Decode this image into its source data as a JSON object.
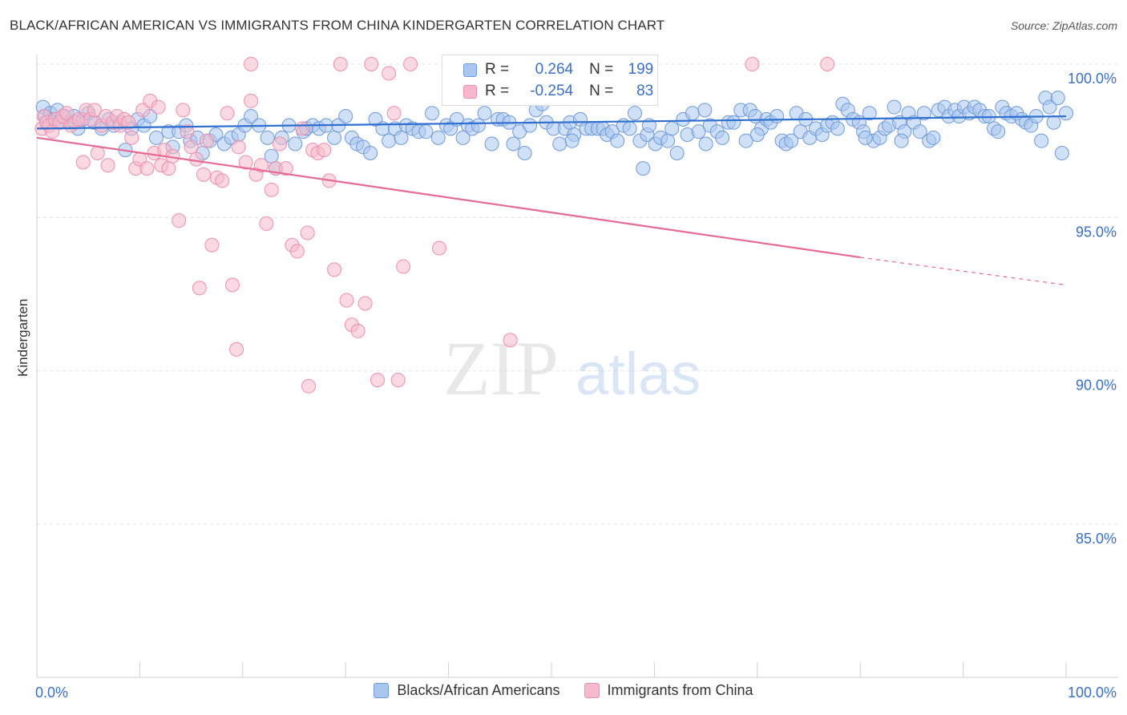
{
  "header": {
    "title": "BLACK/AFRICAN AMERICAN VS IMMIGRANTS FROM CHINA KINDERGARTEN CORRELATION CHART",
    "source": "Source: ZipAtlas.com"
  },
  "legend": {
    "r_label": "R =",
    "n_label": "N =",
    "rows": [
      {
        "r": "0.264",
        "n": "199"
      },
      {
        "r": "-0.254",
        "n": "83"
      }
    ]
  },
  "bottom_legend": {
    "series1": "Blacks/African Americans",
    "series2": "Immigrants from China"
  },
  "watermark": {
    "zip": "ZIP",
    "atlas": "atlas"
  },
  "colors": {
    "blue_fill": "#a9c6ef",
    "blue_stroke": "#6f9ad8",
    "blue_line": "#2f6fd0",
    "pink_fill": "#f6b9cb",
    "pink_stroke": "#ec8fae",
    "pink_line": "#e56a96",
    "tick_label": "#3a6fc4"
  },
  "chart_data": {
    "type": "scatter",
    "title": "BLACK/AFRICAN AMERICAN VS IMMIGRANTS FROM CHINA KINDERGARTEN CORRELATION CHART",
    "xlabel": "",
    "ylabel": "Kindergarten",
    "xlim": [
      0,
      100
    ],
    "ylim": [
      80,
      100.8
    ],
    "x_tick_labels": [
      "0.0%",
      "100.0%"
    ],
    "y_ticks": [
      100,
      95,
      90,
      85
    ],
    "y_tick_labels": [
      "100.0%",
      "95.0%",
      "90.0%",
      "85.0%"
    ],
    "grid": "horizontal dashed",
    "legend_position": "top-center",
    "series": [
      {
        "name": "Blacks/African Americans",
        "r": 0.264,
        "n": 199,
        "trend": {
          "x": [
            0,
            100
          ],
          "y": [
            97.9,
            98.3
          ]
        },
        "points": [
          [
            0.6,
            98.6
          ],
          [
            0.8,
            98.3
          ],
          [
            1.0,
            98.1
          ],
          [
            1.3,
            98.4
          ],
          [
            1.6,
            98.2
          ],
          [
            2.0,
            98.5
          ],
          [
            2.3,
            98.1
          ],
          [
            2.7,
            98.3
          ],
          [
            3.1,
            98.1
          ],
          [
            3.6,
            98.3
          ],
          [
            4.0,
            97.9
          ],
          [
            4.5,
            98.2
          ],
          [
            5.0,
            98.4
          ],
          [
            5.6,
            98.1
          ],
          [
            6.3,
            97.9
          ],
          [
            7.0,
            98.2
          ],
          [
            7.5,
            98.0
          ],
          [
            8.1,
            98.1
          ],
          [
            8.6,
            97.2
          ],
          [
            9.2,
            97.9
          ],
          [
            9.8,
            98.2
          ],
          [
            10.4,
            98.0
          ],
          [
            11.0,
            98.3
          ],
          [
            11.6,
            97.6
          ],
          [
            12.8,
            97.8
          ],
          [
            13.2,
            97.3
          ],
          [
            13.8,
            97.8
          ],
          [
            14.5,
            98.0
          ],
          [
            14.9,
            97.5
          ],
          [
            15.6,
            97.6
          ],
          [
            16.1,
            97.1
          ],
          [
            16.8,
            97.5
          ],
          [
            17.4,
            97.7
          ],
          [
            18.2,
            97.4
          ],
          [
            18.9,
            97.6
          ],
          [
            19.6,
            97.7
          ],
          [
            20.2,
            98.0
          ],
          [
            20.8,
            98.3
          ],
          [
            21.6,
            98.0
          ],
          [
            22.4,
            97.6
          ],
          [
            22.8,
            97.0
          ],
          [
            23.2,
            96.6
          ],
          [
            23.8,
            97.6
          ],
          [
            24.5,
            98.0
          ],
          [
            25.1,
            97.4
          ],
          [
            25.9,
            97.8
          ],
          [
            26.2,
            97.9
          ],
          [
            26.8,
            98.0
          ],
          [
            27.4,
            97.9
          ],
          [
            28.1,
            98.0
          ],
          [
            28.9,
            97.6
          ],
          [
            29.3,
            98.0
          ],
          [
            30.0,
            98.3
          ],
          [
            30.6,
            97.6
          ],
          [
            31.1,
            97.4
          ],
          [
            31.7,
            97.3
          ],
          [
            32.4,
            97.1
          ],
          [
            32.9,
            98.2
          ],
          [
            33.6,
            97.9
          ],
          [
            34.2,
            97.5
          ],
          [
            34.8,
            97.9
          ],
          [
            35.4,
            97.6
          ],
          [
            35.9,
            98.0
          ],
          [
            36.5,
            97.9
          ],
          [
            37.1,
            97.8
          ],
          [
            37.8,
            97.8
          ],
          [
            38.4,
            98.4
          ],
          [
            39.0,
            97.6
          ],
          [
            39.8,
            98.0
          ],
          [
            40.2,
            97.9
          ],
          [
            40.8,
            98.2
          ],
          [
            41.4,
            97.6
          ],
          [
            41.9,
            98.0
          ],
          [
            42.3,
            97.9
          ],
          [
            42.9,
            98.0
          ],
          [
            43.5,
            98.4
          ],
          [
            44.2,
            97.4
          ],
          [
            44.8,
            98.2
          ],
          [
            45.3,
            98.2
          ],
          [
            45.9,
            98.1
          ],
          [
            46.3,
            97.4
          ],
          [
            46.9,
            97.8
          ],
          [
            47.4,
            97.1
          ],
          [
            47.9,
            98.0
          ],
          [
            48.5,
            98.5
          ],
          [
            49.1,
            98.7
          ],
          [
            49.5,
            98.1
          ],
          [
            50.2,
            97.9
          ],
          [
            50.8,
            97.4
          ],
          [
            51.3,
            97.9
          ],
          [
            51.8,
            98.1
          ],
          [
            52.2,
            97.7
          ],
          [
            52.8,
            98.2
          ],
          [
            53.4,
            97.9
          ],
          [
            53.9,
            97.9
          ],
          [
            54.5,
            97.9
          ],
          [
            55.0,
            97.9
          ],
          [
            55.4,
            97.7
          ],
          [
            55.9,
            97.8
          ],
          [
            56.4,
            97.5
          ],
          [
            57.0,
            98.0
          ],
          [
            57.6,
            97.9
          ],
          [
            58.1,
            98.4
          ],
          [
            58.6,
            97.5
          ],
          [
            58.9,
            96.6
          ],
          [
            59.3,
            97.7
          ],
          [
            60.1,
            97.4
          ],
          [
            60.6,
            97.6
          ],
          [
            61.3,
            97.5
          ],
          [
            61.7,
            97.9
          ],
          [
            62.2,
            97.1
          ],
          [
            62.8,
            98.2
          ],
          [
            63.2,
            97.7
          ],
          [
            63.7,
            98.4
          ],
          [
            64.3,
            97.8
          ],
          [
            64.9,
            98.5
          ],
          [
            65.4,
            98.0
          ],
          [
            66.1,
            97.8
          ],
          [
            66.6,
            97.6
          ],
          [
            67.2,
            98.1
          ],
          [
            67.7,
            98.1
          ],
          [
            68.4,
            98.5
          ],
          [
            68.9,
            97.5
          ],
          [
            69.3,
            98.5
          ],
          [
            69.8,
            98.3
          ],
          [
            70.4,
            97.9
          ],
          [
            70.9,
            98.2
          ],
          [
            71.3,
            98.1
          ],
          [
            71.9,
            98.3
          ],
          [
            72.4,
            97.5
          ],
          [
            72.8,
            97.4
          ],
          [
            73.3,
            97.5
          ],
          [
            73.8,
            98.4
          ],
          [
            74.2,
            97.8
          ],
          [
            74.7,
            98.2
          ],
          [
            75.1,
            97.6
          ],
          [
            75.7,
            97.9
          ],
          [
            76.3,
            97.7
          ],
          [
            76.8,
            98.0
          ],
          [
            77.3,
            98.1
          ],
          [
            77.8,
            97.9
          ],
          [
            78.3,
            98.7
          ],
          [
            78.8,
            98.5
          ],
          [
            79.3,
            98.2
          ],
          [
            79.9,
            98.1
          ],
          [
            80.3,
            97.8
          ],
          [
            80.9,
            98.4
          ],
          [
            81.3,
            97.5
          ],
          [
            81.9,
            97.6
          ],
          [
            82.4,
            97.9
          ],
          [
            82.8,
            98.0
          ],
          [
            83.3,
            98.6
          ],
          [
            83.8,
            98.1
          ],
          [
            84.3,
            97.8
          ],
          [
            84.7,
            98.4
          ],
          [
            85.2,
            98.1
          ],
          [
            85.8,
            97.8
          ],
          [
            86.2,
            98.4
          ],
          [
            86.7,
            97.5
          ],
          [
            87.1,
            97.6
          ],
          [
            87.6,
            98.5
          ],
          [
            88.2,
            98.6
          ],
          [
            88.6,
            98.3
          ],
          [
            89.2,
            98.5
          ],
          [
            89.6,
            98.3
          ],
          [
            90.1,
            98.6
          ],
          [
            90.6,
            98.4
          ],
          [
            91.1,
            98.6
          ],
          [
            91.6,
            98.5
          ],
          [
            92.1,
            98.3
          ],
          [
            92.5,
            98.3
          ],
          [
            93.0,
            97.9
          ],
          [
            93.4,
            97.8
          ],
          [
            93.8,
            98.6
          ],
          [
            94.2,
            98.4
          ],
          [
            94.7,
            98.3
          ],
          [
            95.2,
            98.4
          ],
          [
            95.7,
            98.2
          ],
          [
            96.1,
            98.1
          ],
          [
            96.6,
            98.0
          ],
          [
            97.1,
            98.3
          ],
          [
            97.6,
            97.5
          ],
          [
            98.0,
            98.9
          ],
          [
            98.4,
            98.6
          ],
          [
            98.8,
            98.1
          ],
          [
            99.2,
            98.9
          ],
          [
            99.6,
            97.1
          ],
          [
            100.0,
            98.4
          ],
          [
            59.5,
            98.0
          ],
          [
            65.0,
            97.4
          ],
          [
            70.0,
            97.7
          ],
          [
            52.0,
            97.5
          ],
          [
            84.0,
            97.5
          ],
          [
            80.5,
            97.6
          ]
        ]
      },
      {
        "name": "Immigrants from China",
        "r": -0.254,
        "n": 83,
        "trend": {
          "x": [
            0,
            80
          ],
          "y": [
            97.6,
            93.7
          ]
        },
        "trend_dashed": {
          "x": [
            80,
            100
          ],
          "y": [
            93.7,
            92.8
          ]
        },
        "points": [
          [
            0.5,
            97.9
          ],
          [
            0.7,
            98.3
          ],
          [
            0.9,
            98.1
          ],
          [
            1.2,
            98.0
          ],
          [
            1.5,
            97.8
          ],
          [
            1.8,
            98.2
          ],
          [
            2.2,
            98.1
          ],
          [
            2.5,
            98.3
          ],
          [
            2.9,
            98.4
          ],
          [
            3.3,
            98.0
          ],
          [
            3.7,
            98.1
          ],
          [
            4.1,
            98.2
          ],
          [
            4.5,
            96.8
          ],
          [
            4.8,
            98.5
          ],
          [
            5.2,
            98.2
          ],
          [
            5.6,
            98.5
          ],
          [
            5.9,
            97.1
          ],
          [
            6.3,
            98.0
          ],
          [
            6.7,
            98.3
          ],
          [
            6.9,
            96.7
          ],
          [
            7.4,
            98.1
          ],
          [
            7.8,
            98.3
          ],
          [
            8.1,
            98.0
          ],
          [
            8.5,
            98.2
          ],
          [
            8.9,
            98.1
          ],
          [
            9.2,
            97.6
          ],
          [
            9.6,
            96.6
          ],
          [
            10.0,
            96.9
          ],
          [
            10.3,
            98.5
          ],
          [
            10.7,
            96.6
          ],
          [
            11.0,
            98.8
          ],
          [
            11.4,
            97.1
          ],
          [
            11.8,
            98.6
          ],
          [
            12.1,
            96.7
          ],
          [
            12.4,
            97.2
          ],
          [
            12.8,
            96.6
          ],
          [
            13.2,
            97.0
          ],
          [
            13.8,
            94.9
          ],
          [
            14.2,
            98.5
          ],
          [
            14.6,
            97.8
          ],
          [
            15.0,
            97.3
          ],
          [
            15.5,
            96.9
          ],
          [
            15.8,
            92.7
          ],
          [
            16.2,
            96.4
          ],
          [
            16.5,
            97.5
          ],
          [
            17.0,
            94.1
          ],
          [
            17.5,
            96.3
          ],
          [
            18.0,
            96.2
          ],
          [
            18.5,
            98.4
          ],
          [
            19.0,
            92.8
          ],
          [
            19.6,
            97.3
          ],
          [
            20.3,
            96.8
          ],
          [
            20.8,
            98.8
          ],
          [
            21.3,
            96.4
          ],
          [
            21.8,
            96.7
          ],
          [
            22.3,
            94.8
          ],
          [
            22.8,
            95.9
          ],
          [
            23.2,
            96.6
          ],
          [
            23.6,
            97.4
          ],
          [
            24.2,
            96.6
          ],
          [
            24.8,
            94.1
          ],
          [
            25.3,
            93.9
          ],
          [
            25.8,
            97.9
          ],
          [
            26.3,
            94.5
          ],
          [
            26.8,
            97.2
          ],
          [
            27.3,
            97.1
          ],
          [
            27.9,
            97.2
          ],
          [
            28.4,
            96.2
          ],
          [
            28.9,
            93.3
          ],
          [
            30.1,
            92.3
          ],
          [
            30.6,
            91.5
          ],
          [
            31.2,
            91.3
          ],
          [
            31.9,
            92.2
          ],
          [
            33.1,
            89.7
          ],
          [
            34.7,
            98.4
          ],
          [
            35.1,
            89.7
          ],
          [
            35.6,
            93.4
          ],
          [
            36.3,
            100.0
          ],
          [
            39.1,
            94.0
          ],
          [
            46.0,
            91.0
          ],
          [
            26.4,
            89.5
          ],
          [
            20.8,
            100.0
          ],
          [
            29.5,
            100.0
          ],
          [
            32.5,
            100.0
          ],
          [
            34.2,
            99.7
          ],
          [
            69.5,
            100.0
          ],
          [
            76.8,
            100.0
          ],
          [
            19.4,
            90.7
          ]
        ]
      }
    ]
  }
}
